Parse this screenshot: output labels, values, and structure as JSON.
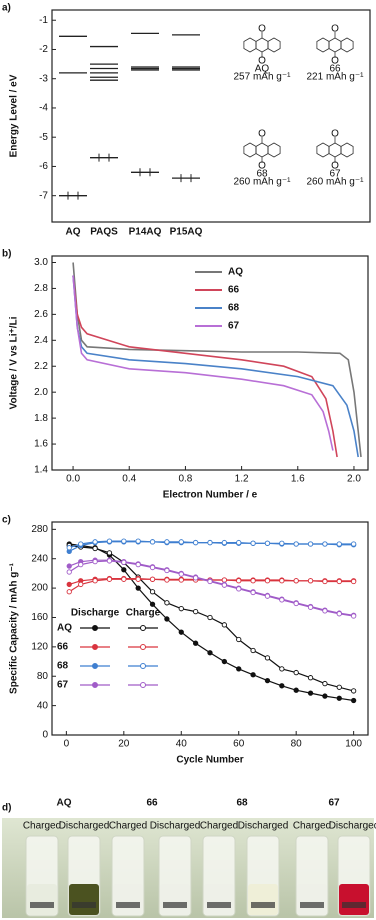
{
  "chart_data": [
    {
      "type": "energy-level",
      "panel": "a)",
      "ylabel": "Energy Level / eV",
      "categories": [
        "AQ",
        "PAQS",
        "P14AQ",
        "P15AQ"
      ],
      "levels": [
        [
          -1.55,
          -2.8,
          -7.0
        ],
        [
          -1.9,
          -2.5,
          -2.65,
          -2.8,
          -2.95,
          -3.05,
          -5.7
        ],
        [
          -1.45,
          -2.6,
          -2.65,
          -2.7,
          -6.2
        ],
        [
          -1.5,
          -2.6,
          -2.65,
          -2.7,
          -6.4
        ]
      ],
      "ylim": [
        -7.9,
        -0.65
      ],
      "yticks": [
        -1,
        -2,
        -3,
        -4,
        -5,
        -6,
        -7
      ],
      "structures": [
        {
          "name": "AQ",
          "capacity": "257 mAh g⁻¹"
        },
        {
          "name": "66",
          "capacity": "221 mAh g⁻¹"
        },
        {
          "name": "68",
          "capacity": "260 mAh g⁻¹"
        },
        {
          "name": "67",
          "capacity": "260 mAh g⁻¹"
        }
      ]
    },
    {
      "type": "line",
      "panel": "b)",
      "xlabel": "Electron Number / e",
      "ylabel": "Voltage / V vs Li⁺/Li",
      "xlim": [
        -0.15,
        2.1
      ],
      "xticks": [
        {
          "value": 0,
          "label": "0.0"
        },
        0.4,
        0.8,
        1.2,
        1.6,
        {
          "value": 2,
          "label": "2.0"
        }
      ],
      "ylim": [
        1.4,
        3.05
      ],
      "yticks": [
        1.4,
        1.6,
        1.8,
        {
          "value": 2,
          "label": "2.0"
        },
        2.2,
        2.4,
        2.6,
        2.8,
        {
          "value": 3,
          "label": "3.0"
        }
      ],
      "series": [
        {
          "name": "AQ",
          "color": "#777777",
          "x": [
            0,
            0.03,
            0.06,
            0.1,
            0.4,
            0.8,
            1.2,
            1.6,
            1.9,
            1.96,
            2.0,
            2.03,
            2.05
          ],
          "values": [
            3.0,
            2.6,
            2.4,
            2.35,
            2.33,
            2.32,
            2.31,
            2.31,
            2.3,
            2.25,
            2.0,
            1.7,
            1.5
          ]
        },
        {
          "name": "66",
          "color": "#d0455a",
          "x": [
            0,
            0.03,
            0.06,
            0.1,
            0.4,
            0.8,
            1.2,
            1.5,
            1.7,
            1.8,
            1.85,
            1.88
          ],
          "values": [
            2.9,
            2.6,
            2.5,
            2.45,
            2.35,
            2.3,
            2.25,
            2.2,
            2.12,
            1.95,
            1.7,
            1.5
          ]
        },
        {
          "name": "68",
          "color": "#4a82c8",
          "x": [
            0,
            0.03,
            0.06,
            0.1,
            0.4,
            0.8,
            1.2,
            1.6,
            1.85,
            1.95,
            2.0,
            2.03
          ],
          "values": [
            2.9,
            2.5,
            2.35,
            2.3,
            2.25,
            2.22,
            2.18,
            2.12,
            2.05,
            1.9,
            1.7,
            1.5
          ]
        },
        {
          "name": "67",
          "color": "#b86fd6",
          "x": [
            0,
            0.03,
            0.06,
            0.1,
            0.4,
            0.8,
            1.2,
            1.5,
            1.7,
            1.78,
            1.82,
            1.85
          ],
          "values": [
            2.9,
            2.5,
            2.3,
            2.25,
            2.18,
            2.15,
            2.1,
            2.05,
            1.98,
            1.85,
            1.7,
            1.55
          ]
        }
      ]
    },
    {
      "type": "scatter",
      "panel": "c)",
      "xlabel": "Cycle Number",
      "ylabel": "Specific Capacity / mAh g⁻¹",
      "legend_headers": [
        "Discharge",
        "Charge"
      ],
      "xlim": [
        -5,
        105
      ],
      "xticks": [
        0,
        20,
        40,
        60,
        80,
        100
      ],
      "ylim": [
        0,
        290
      ],
      "yticks": [
        0,
        40,
        80,
        120,
        160,
        200,
        240,
        280
      ],
      "x": [
        1,
        5,
        10,
        15,
        20,
        25,
        30,
        35,
        40,
        45,
        50,
        55,
        60,
        65,
        70,
        75,
        80,
        85,
        90,
        95,
        100
      ],
      "series": [
        {
          "name": "AQ",
          "color": "#111111",
          "discharge": [
            260,
            258,
            255,
            245,
            225,
            200,
            178,
            158,
            140,
            125,
            112,
            100,
            90,
            82,
            74,
            67,
            61,
            57,
            53,
            50,
            47
          ],
          "charge": [
            258,
            256,
            254,
            248,
            235,
            215,
            195,
            180,
            172,
            168,
            160,
            150,
            130,
            115,
            105,
            90,
            85,
            78,
            70,
            65,
            60
          ]
        },
        {
          "name": "66",
          "color": "#d9343f",
          "discharge": [
            205,
            210,
            212,
            213,
            213,
            213,
            212,
            212,
            212,
            212,
            211,
            211,
            211,
            211,
            211,
            211,
            210,
            210,
            210,
            210,
            210
          ],
          "charge": [
            195,
            205,
            210,
            212,
            212,
            212,
            212,
            211,
            211,
            211,
            211,
            211,
            210,
            210,
            210,
            210,
            210,
            210,
            209,
            209,
            209
          ]
        },
        {
          "name": "68",
          "color": "#3f7fd0",
          "discharge": [
            250,
            258,
            262,
            263,
            263,
            263,
            263,
            262,
            262,
            262,
            262,
            261,
            261,
            261,
            261,
            260,
            260,
            260,
            260,
            259,
            259
          ],
          "charge": [
            255,
            260,
            263,
            264,
            264,
            264,
            263,
            263,
            263,
            262,
            262,
            262,
            262,
            261,
            261,
            261,
            260,
            260,
            260,
            260,
            260
          ]
        },
        {
          "name": "67",
          "color": "#a05cc8",
          "discharge": [
            230,
            236,
            238,
            238,
            236,
            233,
            229,
            225,
            220,
            215,
            210,
            205,
            200,
            195,
            190,
            185,
            180,
            175,
            170,
            166,
            163
          ],
          "charge": [
            222,
            232,
            236,
            237,
            235,
            232,
            228,
            224,
            219,
            214,
            209,
            204,
            199,
            194,
            189,
            184,
            179,
            174,
            169,
            165,
            162
          ]
        }
      ]
    }
  ],
  "photo": {
    "panel": "d)",
    "samples": [
      "AQ",
      "66",
      "68",
      "67"
    ],
    "states": [
      "Charged",
      "Discharged"
    ]
  }
}
